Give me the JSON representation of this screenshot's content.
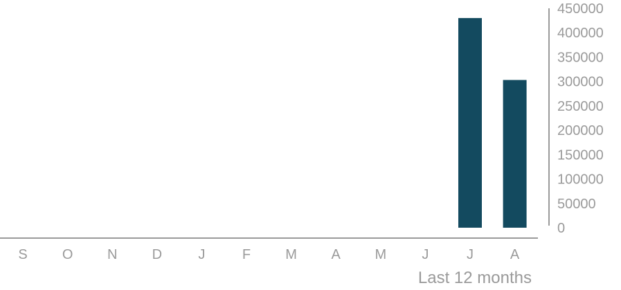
{
  "chart_data": {
    "type": "bar",
    "categories": [
      "S",
      "O",
      "N",
      "D",
      "J",
      "F",
      "M",
      "A",
      "M",
      "J",
      "J",
      "A"
    ],
    "values": [
      0,
      0,
      0,
      0,
      0,
      0,
      0,
      0,
      0,
      0,
      430000,
      303000
    ],
    "xlabel": "Last 12 months",
    "ylabel": "",
    "ylim": [
      0,
      450000
    ],
    "yticks": [
      "0",
      "50000",
      "100000",
      "150000",
      "200000",
      "250000",
      "300000",
      "350000",
      "400000",
      "450000"
    ],
    "grid": false,
    "legend": "none",
    "bar_color": "#134a5f",
    "axis_color": "#9a9a9a"
  }
}
